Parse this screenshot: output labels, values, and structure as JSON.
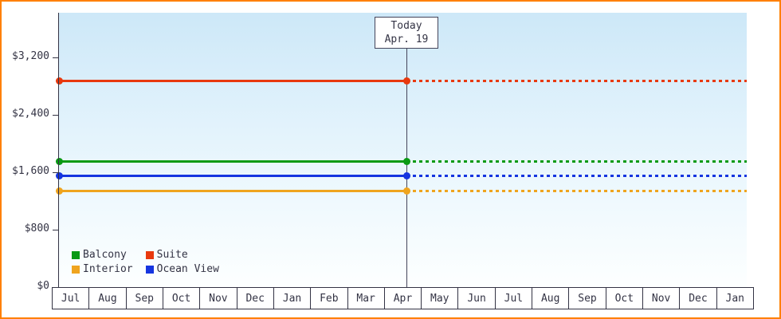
{
  "chart_data": {
    "type": "line",
    "title": "",
    "y_axis": {
      "label": "",
      "max_tick_value": 3200,
      "ticks": [
        {
          "label": "$0",
          "value": 0
        },
        {
          "label": "$800",
          "value": 800
        },
        {
          "label": "$1,600",
          "value": 1600
        },
        {
          "label": "$2,400",
          "value": 2400
        },
        {
          "label": "$3,200",
          "value": 3200
        }
      ]
    },
    "x_axis": {
      "months": [
        "Jul",
        "Aug",
        "Sep",
        "Oct",
        "Nov",
        "Dec",
        "Jan",
        "Feb",
        "Mar",
        "Apr",
        "May",
        "Jun",
        "Jul",
        "Aug",
        "Sep",
        "Oct",
        "Nov",
        "Dec",
        "Jan"
      ]
    },
    "today": {
      "label": "Today",
      "date": "Apr. 19",
      "month_index": 9,
      "day": 19
    },
    "series": [
      {
        "name": "Suite",
        "color": "#e8390e",
        "value": 2870
      },
      {
        "name": "Balcony",
        "color": "#0a9a14",
        "value": 1750
      },
      {
        "name": "Ocean View",
        "color": "#1535e0",
        "value": 1550
      },
      {
        "name": "Interior",
        "color": "#efa41f",
        "value": 1340
      }
    ],
    "legend": {
      "rows": [
        [
          "Balcony",
          "Suite"
        ],
        [
          "Interior",
          "Ocean View"
        ]
      ]
    },
    "colors": {
      "frame_border": "#ff8000",
      "axis": "#333344",
      "plot_gradient_top": "#cde8f8",
      "plot_gradient_bottom": "#fdffff"
    }
  }
}
